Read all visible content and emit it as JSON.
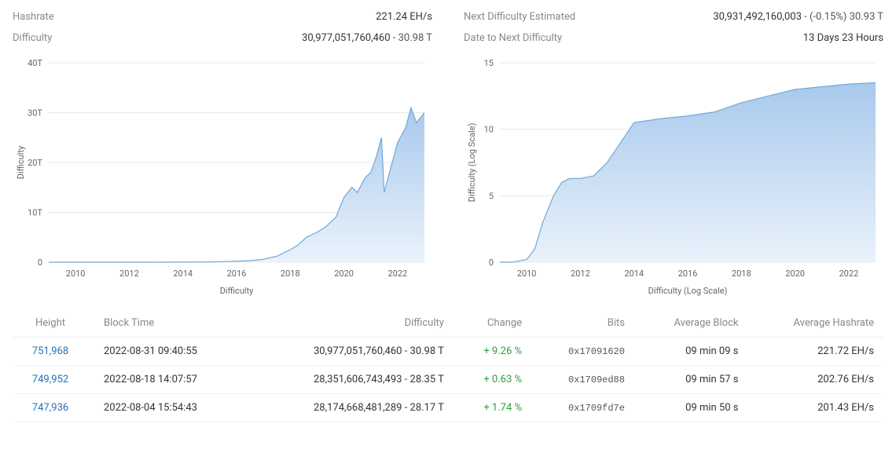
{
  "stats": {
    "left": [
      {
        "label": "Hashrate",
        "value": "221.24 EH/s"
      },
      {
        "label": "Difficulty",
        "value": "30,977,051,760,460",
        "suffix": " - 30.98 T"
      }
    ],
    "right": [
      {
        "label": "Next Difficulty Estimated",
        "value": "30,931,492,160,003",
        "suffix": " - (-0.15%) 30.93 T"
      },
      {
        "label": "Date to Next Difficulty",
        "value": "13 Days 23 Hours"
      }
    ]
  },
  "charts": {
    "left": {
      "type": "area",
      "title": "Difficulty",
      "ylabel": "Difficulty",
      "ylim": [
        0,
        40
      ],
      "yticks": [
        0,
        10,
        20,
        30,
        40
      ],
      "ytick_suffix": "T",
      "xlim": [
        2009,
        2023
      ],
      "xticks": [
        2010,
        2012,
        2014,
        2016,
        2018,
        2020,
        2022
      ],
      "series": {
        "x": [
          2009,
          2010,
          2011,
          2012,
          2013,
          2014,
          2015,
          2016,
          2016.5,
          2017,
          2017.5,
          2018,
          2018.3,
          2018.6,
          2019,
          2019.3,
          2019.7,
          2020,
          2020.3,
          2020.5,
          2020.8,
          2021,
          2021.2,
          2021.4,
          2021.5,
          2021.7,
          2022,
          2022.3,
          2022.5,
          2022.7,
          2023
        ],
        "y": [
          0,
          0,
          0,
          0,
          0,
          0.02,
          0.05,
          0.2,
          0.3,
          0.6,
          1.2,
          2.5,
          3.5,
          5,
          6,
          7,
          9,
          13,
          15,
          14,
          17,
          18,
          21,
          25,
          14,
          18,
          24,
          27,
          31,
          28,
          30
        ]
      },
      "colors": {
        "line": "#6fa8dc",
        "fill_top": "#a8c9ec",
        "fill_bottom": "#e8f0fa",
        "grid": "#e8e8e8",
        "text": "#666666"
      },
      "label_fontsize": 11
    },
    "right": {
      "type": "area",
      "title": "Difficulty (Log Scale)",
      "ylabel": "Difficulty (Log Scale)",
      "ylim": [
        0,
        15
      ],
      "yticks": [
        0,
        5,
        10,
        15
      ],
      "ytick_suffix": "",
      "xlim": [
        2009,
        2023
      ],
      "xticks": [
        2010,
        2012,
        2014,
        2016,
        2018,
        2020,
        2022
      ],
      "series": {
        "x": [
          2009,
          2009.5,
          2010,
          2010.3,
          2010.6,
          2011,
          2011.3,
          2011.6,
          2012,
          2012.5,
          2013,
          2013.5,
          2014,
          2015,
          2016,
          2017,
          2018,
          2019,
          2020,
          2021,
          2022,
          2023
        ],
        "y": [
          0,
          0,
          0.2,
          1,
          3,
          5,
          6,
          6.3,
          6.3,
          6.5,
          7.5,
          9,
          10.5,
          10.8,
          11,
          11.3,
          12,
          12.5,
          13,
          13.2,
          13.4,
          13.5
        ]
      },
      "colors": {
        "line": "#6fa8dc",
        "fill_top": "#a8c9ec",
        "fill_bottom": "#e8f0fa",
        "grid": "#e8e8e8",
        "text": "#666666"
      },
      "label_fontsize": 11
    }
  },
  "table": {
    "columns": [
      "Height",
      "Block Time",
      "Difficulty",
      "Change",
      "Bits",
      "Average Block",
      "Average Hashrate"
    ],
    "rows": [
      {
        "height": "751,968",
        "time": "2022-08-31 09:40:55",
        "difficulty": "30,977,051,760,460 - 30.98 T",
        "change": "+ 9.26 %",
        "bits": "0x17091620",
        "avg_block": "09 min 09 s",
        "avg_hash": "221.72 EH/s"
      },
      {
        "height": "749,952",
        "time": "2022-08-18 14:07:57",
        "difficulty": "28,351,606,743,493 - 28.35 T",
        "change": "+ 0.63 %",
        "bits": "0x1709ed88",
        "avg_block": "09 min 57 s",
        "avg_hash": "202.76 EH/s"
      },
      {
        "height": "747,936",
        "time": "2022-08-04 15:54:43",
        "difficulty": "28,174,668,481,289 - 28.17 T",
        "change": "+ 1.74 %",
        "bits": "0x1709fd7e",
        "avg_block": "09 min 50 s",
        "avg_hash": "201.43 EH/s"
      }
    ]
  }
}
